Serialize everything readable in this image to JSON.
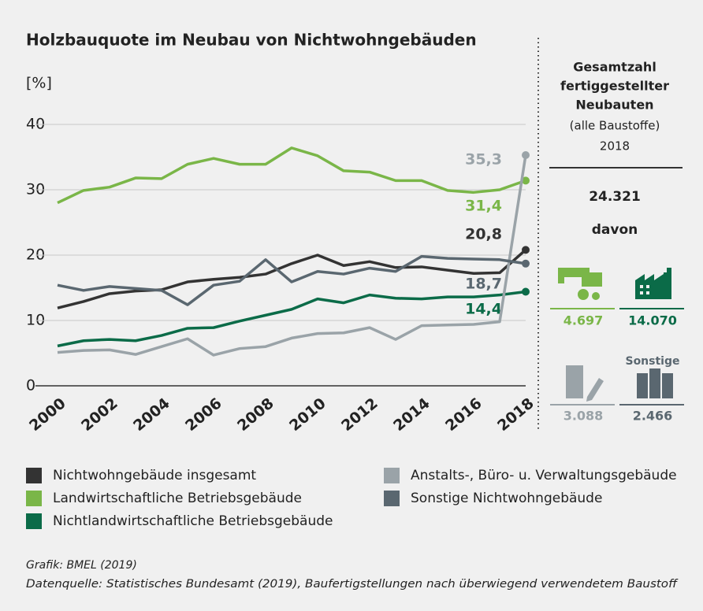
{
  "chart_data": {
    "type": "line",
    "title": "Holzbauquote im Neubau von Nichtwohngebäuden",
    "y_label": "[%]",
    "x": [
      2000,
      2001,
      2002,
      2003,
      2004,
      2005,
      2006,
      2007,
      2008,
      2009,
      2010,
      2011,
      2012,
      2013,
      2014,
      2015,
      2016,
      2017,
      2018
    ],
    "xlim": [
      2000,
      2018
    ],
    "xticks": [
      2000,
      2002,
      2004,
      2006,
      2008,
      2010,
      2012,
      2014,
      2016,
      2018
    ],
    "ylim": [
      0,
      40
    ],
    "yticks": [
      0,
      10,
      20,
      30,
      40
    ],
    "grid": true,
    "series": [
      {
        "name": "Nichtwohngebäude insgesamt",
        "color": "#333333",
        "values": [
          11.9,
          12.9,
          14.1,
          14.5,
          14.7,
          15.9,
          16.3,
          16.6,
          17.1,
          18.7,
          20.0,
          18.4,
          19.0,
          18.1,
          18.2,
          17.7,
          17.2,
          17.3,
          20.8
        ],
        "value_labels": [
          null,
          null,
          null,
          null,
          null,
          null,
          null,
          null,
          null,
          null,
          null,
          null,
          null,
          null,
          null,
          null,
          null,
          null,
          "20,8"
        ]
      },
      {
        "name": "Landwirtschaftliche Betriebsgebäude",
        "color": "#7ab648",
        "values": [
          28.0,
          29.9,
          30.4,
          31.8,
          31.7,
          33.9,
          34.8,
          33.9,
          33.9,
          36.4,
          35.2,
          32.9,
          32.7,
          31.4,
          31.4,
          29.9,
          29.6,
          30.0,
          31.4
        ],
        "value_labels": [
          null,
          null,
          null,
          null,
          null,
          null,
          null,
          null,
          null,
          null,
          null,
          null,
          null,
          null,
          null,
          null,
          null,
          null,
          "31,4"
        ]
      },
      {
        "name": "Nichtlandwirtschaftliche Betriebsgebäude",
        "color": "#0b6b48",
        "values": [
          6.1,
          6.9,
          7.1,
          6.9,
          7.7,
          8.8,
          8.9,
          9.9,
          10.8,
          11.7,
          13.3,
          12.7,
          13.9,
          13.4,
          13.3,
          13.6,
          13.6,
          13.9,
          14.4
        ],
        "value_labels": [
          null,
          null,
          null,
          null,
          null,
          null,
          null,
          null,
          null,
          null,
          null,
          null,
          null,
          null,
          null,
          null,
          null,
          null,
          "14,4"
        ]
      },
      {
        "name": "Anstalts-, Büro- u. Verwaltungsgebäude",
        "color": "#9aa3a8",
        "values": [
          5.1,
          5.4,
          5.5,
          4.8,
          6.0,
          7.2,
          4.7,
          5.7,
          6.0,
          7.3,
          8.0,
          8.1,
          8.9,
          7.1,
          9.2,
          9.3,
          9.4,
          9.8,
          35.3
        ],
        "value_labels": [
          null,
          null,
          null,
          null,
          null,
          null,
          null,
          null,
          null,
          null,
          null,
          null,
          null,
          null,
          null,
          null,
          null,
          null,
          "35,3"
        ]
      },
      {
        "name": "Sonstige Nichtwohngebäude",
        "color": "#5a6770",
        "values": [
          15.4,
          14.6,
          15.2,
          14.9,
          14.6,
          12.4,
          15.4,
          16.0,
          19.3,
          15.9,
          17.5,
          17.1,
          18.0,
          17.5,
          19.8,
          19.5,
          19.4,
          19.3,
          18.7
        ],
        "value_labels": [
          null,
          null,
          null,
          null,
          null,
          null,
          null,
          null,
          null,
          null,
          null,
          null,
          null,
          null,
          null,
          null,
          null,
          null,
          "18,7"
        ]
      }
    ]
  },
  "panel": {
    "title_lines": [
      "Gesamtzahl",
      "fertiggestellter",
      "Neubauten"
    ],
    "subtitle": "(alle Baustoffe)",
    "year": "2018",
    "total": "24.321",
    "breakdown_label": "davon",
    "items": [
      {
        "value": "4.697",
        "color": "#7ab648"
      },
      {
        "value": "14.070",
        "color": "#0b6b48"
      },
      {
        "value": "3.088",
        "color": "#9aa3a8"
      },
      {
        "label": "Sonstige",
        "value": "2.466",
        "color": "#5a6770"
      }
    ]
  },
  "footer": {
    "credit": "Grafik: BMEL (2019)",
    "source": "Datenquelle: Statistisches Bundesamt (2019), Baufertigstellungen nach überwiegend verwendetem Baustoff"
  }
}
